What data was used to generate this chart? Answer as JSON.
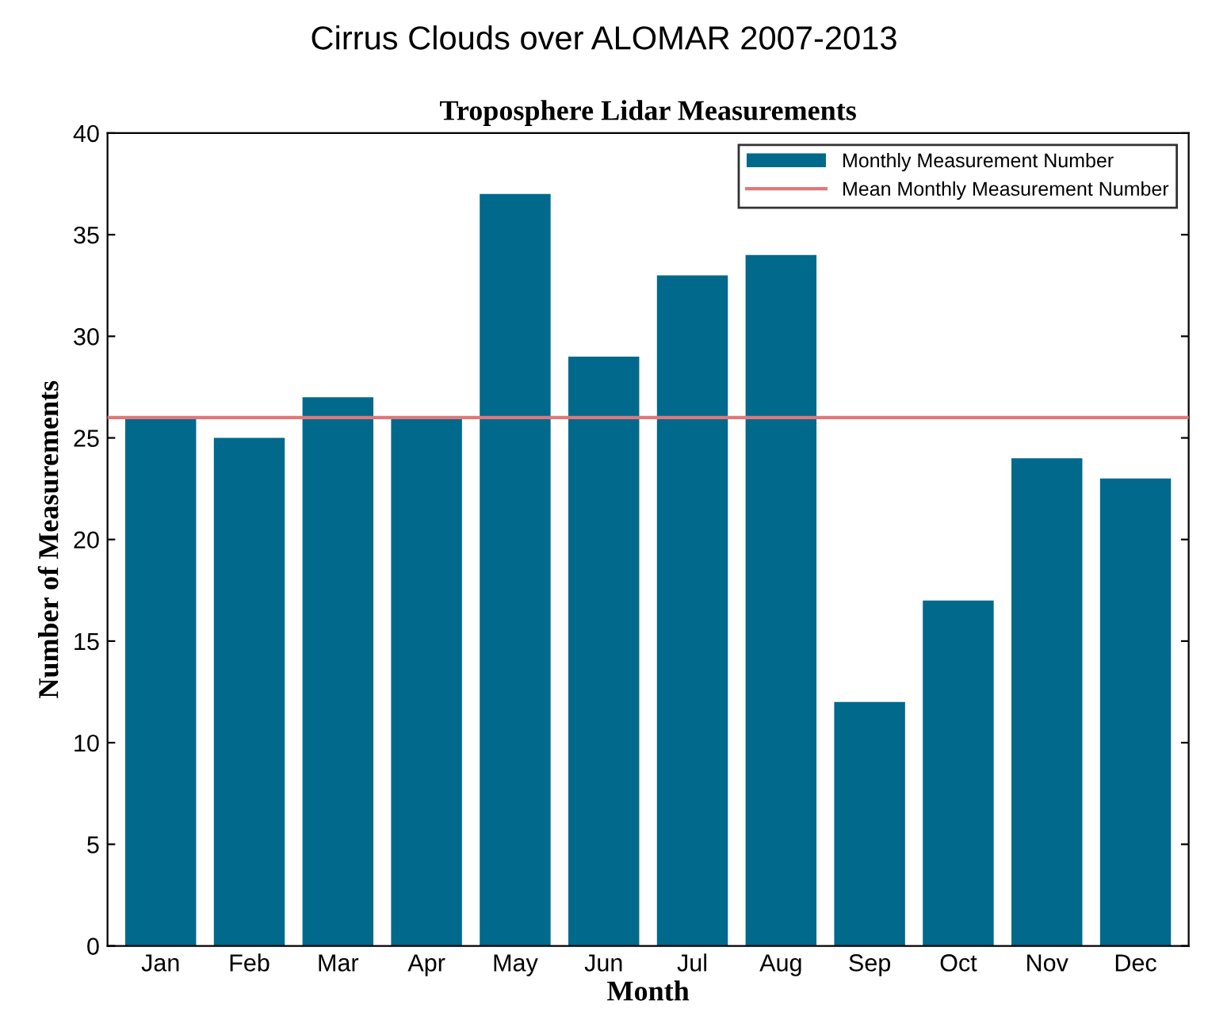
{
  "chart_data": {
    "type": "bar",
    "title": "Cirrus Clouds over ALOMAR 2007-2013",
    "subtitle": "Troposphere Lidar Measurements",
    "xlabel": "Month",
    "ylabel": "Number of Measurements",
    "categories": [
      "Jan",
      "Feb",
      "Mar",
      "Apr",
      "May",
      "Jun",
      "Jul",
      "Aug",
      "Sep",
      "Oct",
      "Nov",
      "Dec"
    ],
    "series": [
      {
        "name": "Monthly Measurement Number",
        "color": "#00698c",
        "values": [
          26,
          25,
          27,
          26,
          37,
          29,
          33,
          34,
          12,
          17,
          24,
          23
        ]
      }
    ],
    "ref_lines": [
      {
        "axis": "y",
        "value": 26,
        "label": "Mean Monthly Measurement Number",
        "color": "#e07878",
        "line_style": "solid"
      }
    ],
    "ylim": [
      0,
      40
    ],
    "yticks": [
      0,
      5,
      10,
      15,
      20,
      25,
      30,
      35,
      40
    ],
    "grid": false,
    "legend": "top right"
  }
}
